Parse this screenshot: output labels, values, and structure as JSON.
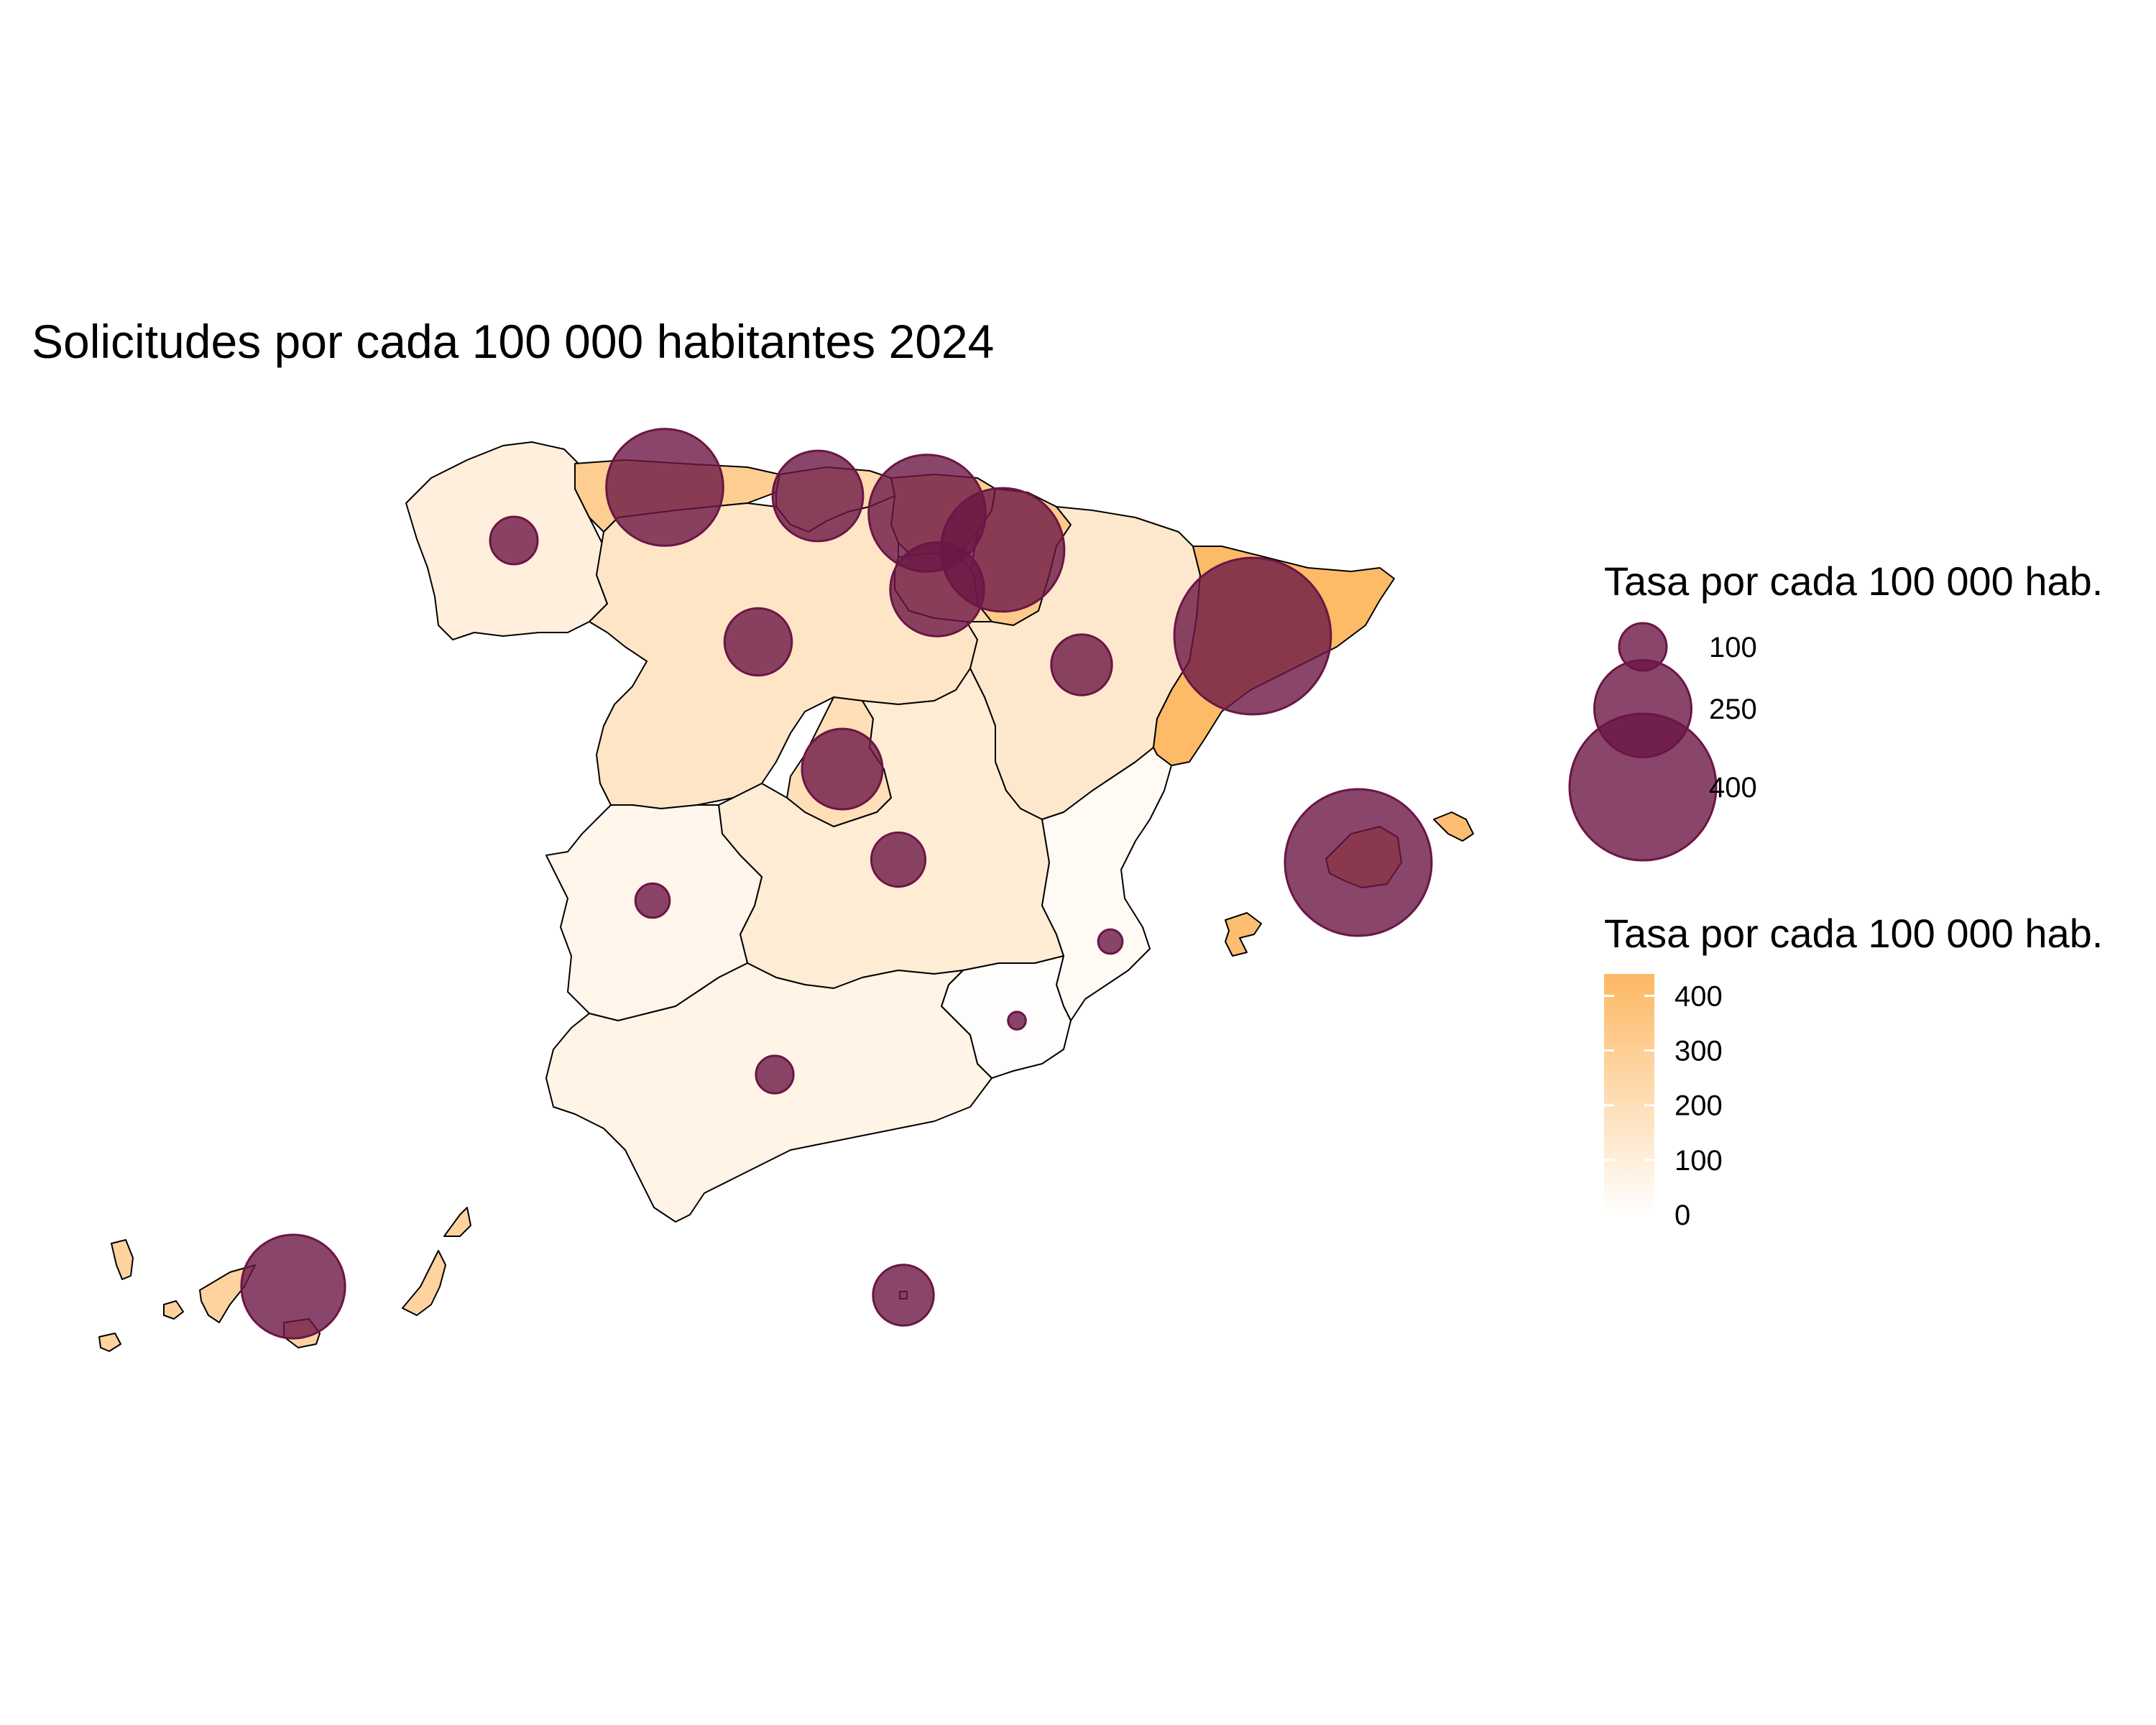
{
  "title": "Solicitudes por cada 100 000 habitantes 2024",
  "colors": {
    "low": "#ffffff",
    "high": "#fdb863",
    "bubble": "#6b1645",
    "border": "#000000"
  },
  "legend": {
    "size": {
      "title": "Tasa por cada 100 000 hab.",
      "entries": [
        {
          "label": "100",
          "value": 100
        },
        {
          "label": "250",
          "value": 250
        },
        {
          "label": "400",
          "value": 400
        }
      ]
    },
    "fill": {
      "title": "Tasa por cada 100 000 hab.",
      "range": [
        0,
        440
      ],
      "ticks": [
        {
          "label": "0",
          "value": 0
        },
        {
          "label": "100",
          "value": 100
        },
        {
          "label": "200",
          "value": 200
        },
        {
          "label": "300",
          "value": 300
        },
        {
          "label": "400",
          "value": 400
        }
      ]
    }
  },
  "chart_data": {
    "type": "bubble-choropleth",
    "regions": [
      {
        "key": "galicia",
        "value": 100
      },
      {
        "key": "asturias",
        "value": 310
      },
      {
        "key": "cantabria",
        "value": 230
      },
      {
        "key": "pais-vasco",
        "value": 310
      },
      {
        "key": "navarra",
        "value": 330
      },
      {
        "key": "la-rioja",
        "value": 240
      },
      {
        "key": "castilla-y-leon",
        "value": 160
      },
      {
        "key": "aragon",
        "value": 140
      },
      {
        "key": "cataluna",
        "value": 430
      },
      {
        "key": "madrid",
        "value": 200
      },
      {
        "key": "castilla-la-mancha",
        "value": 120
      },
      {
        "key": "extremadura",
        "value": 60
      },
      {
        "key": "comunidad-valenciana",
        "value": 30
      },
      {
        "key": "murcia",
        "value": 10
      },
      {
        "key": "andalucia",
        "value": 70
      },
      {
        "key": "baleares",
        "value": 400
      },
      {
        "key": "canarias",
        "value": 270
      },
      {
        "key": "ceuta-melilla",
        "value": 140
      }
    ]
  }
}
